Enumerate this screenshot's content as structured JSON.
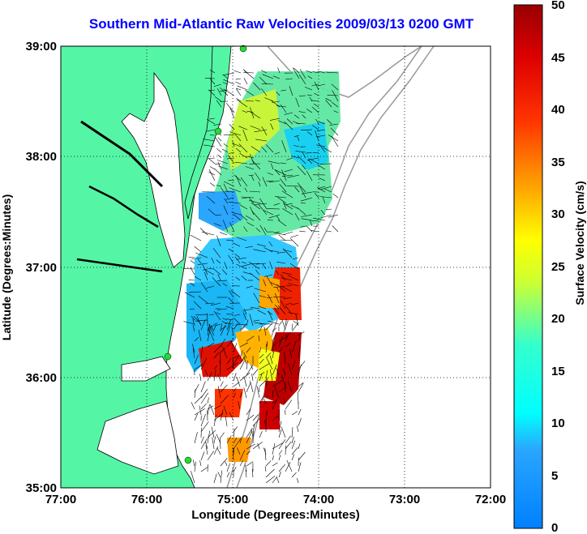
{
  "title": "Southern Mid-Atlantic Raw Velocities 2009/03/13 0200 GMT",
  "xlabel": "Longitude (Degrees:Minutes)",
  "ylabel": "Latitude (Degrees:Minutes)",
  "x_ticks": [
    "77:00",
    "76:00",
    "75:00",
    "74:00",
    "73:00",
    "72:00"
  ],
  "y_ticks": [
    "39:00",
    "38:00",
    "37:00",
    "36:00",
    "35:00"
  ],
  "colorbar": {
    "label": "Surface Velocity (cm/s)",
    "ticks": [
      "0",
      "5",
      "10",
      "15",
      "20",
      "25",
      "30",
      "35",
      "40",
      "45",
      "50"
    ],
    "min": 0,
    "max": 50
  },
  "colors": {
    "land": "#55f5a6",
    "water": "#ffffff",
    "coast_line": "#000000",
    "bathymetry": "#999999",
    "station": "#22dd33",
    "vector": "#000000"
  },
  "chart_data": {
    "type": "heatmap",
    "title": "Southern Mid-Atlantic Raw Velocities 2009/03/13 0200 GMT",
    "xlabel": "Longitude (Degrees:Minutes)",
    "ylabel": "Latitude (Degrees:Minutes)",
    "xlim": [
      -77,
      -72
    ],
    "ylim": [
      35,
      39
    ],
    "grid": true,
    "colorbar_range": [
      0,
      50
    ],
    "colorbar_label": "Surface Velocity (cm/s)"
  }
}
